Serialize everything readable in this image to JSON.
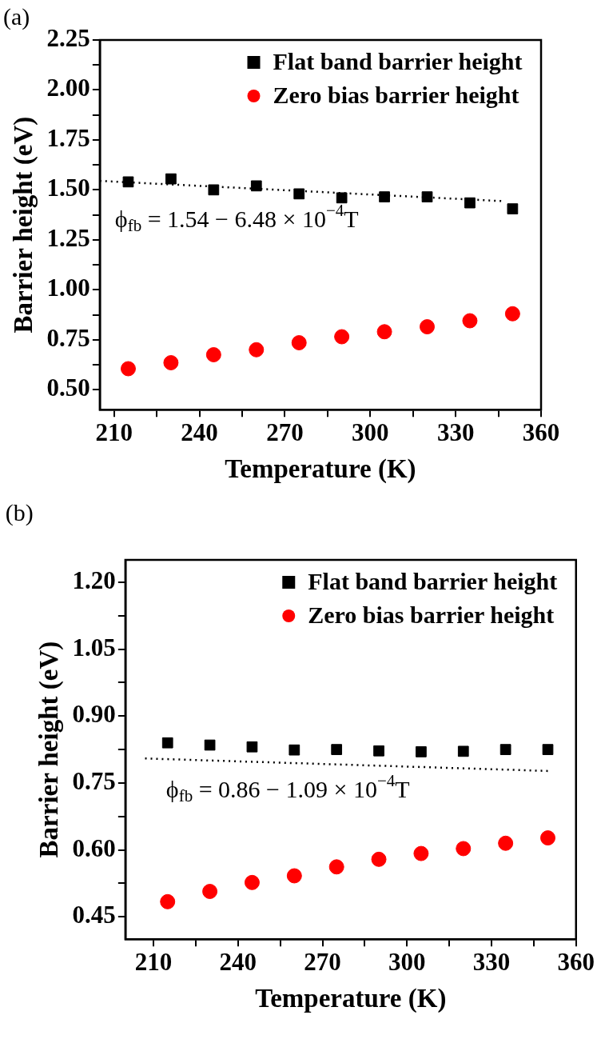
{
  "chart_data": [
    {
      "type": "scatter",
      "title": "(a)",
      "xlabel": "Temperature (K)",
      "ylabel": "Barrier height (eV)",
      "x": [
        215,
        230,
        245,
        260,
        275,
        290,
        305,
        320,
        335,
        350
      ],
      "xlim": [
        205,
        360
      ],
      "xticks": [
        210,
        {
          "value": 225,
          "label": null
        },
        240,
        {
          "value": 255,
          "label": null
        },
        270,
        {
          "value": 285,
          "label": null
        },
        300,
        {
          "value": 315,
          "label": null
        },
        330,
        {
          "value": 345,
          "label": null
        },
        360
      ],
      "ylim": [
        0.4,
        2.25
      ],
      "yticks": [
        {
          "value": 0.5,
          "label": "0.50"
        },
        {
          "value": 0.625,
          "label": null
        },
        {
          "value": 0.75,
          "label": "0.75"
        },
        {
          "value": 0.875,
          "label": null
        },
        {
          "value": 1.0,
          "label": "1.00"
        },
        {
          "value": 1.125,
          "label": null
        },
        {
          "value": 1.25,
          "label": "1.25"
        },
        {
          "value": 1.375,
          "label": null
        },
        {
          "value": 1.5,
          "label": "1.50"
        },
        {
          "value": 1.625,
          "label": null
        },
        {
          "value": 1.75,
          "label": "1.75"
        },
        {
          "value": 1.875,
          "label": null
        },
        {
          "value": 2.0,
          "label": "2.00"
        },
        {
          "value": 2.125,
          "label": null
        },
        {
          "value": 2.25,
          "label": "2.25"
        }
      ],
      "grid": false,
      "legend": "top right",
      "series": [
        {
          "name": "Flat band barrier height",
          "color": "#000000",
          "marker": "square",
          "values": [
            1.54,
            1.555,
            1.5,
            1.52,
            1.48,
            1.46,
            1.465,
            1.465,
            1.435,
            1.405
          ]
        },
        {
          "name": "Zero bias barrier height",
          "color": "#ff0000",
          "marker": "circle",
          "values": [
            0.605,
            0.635,
            0.675,
            0.7,
            0.735,
            0.765,
            0.79,
            0.815,
            0.845,
            0.88
          ]
        },
        {
          "type": "line",
          "color": "#000000",
          "marker": "none",
          "line_style": "dotted",
          "x": [
            205,
            346
          ],
          "values": [
            1.545,
            1.444
          ]
        }
      ],
      "annotations": [
        "ϕ$_{fb}$ = 1.54 − 6.48 × 10$^{−4}$T"
      ]
    },
    {
      "type": "scatter",
      "title": "(b)",
      "xlabel": "Temperature (K)",
      "ylabel": "Barrier height (eV)",
      "x": [
        215,
        230,
        245,
        260,
        275,
        290,
        305,
        320,
        335,
        350
      ],
      "xlim": [
        200,
        360
      ],
      "xticks": [
        210,
        {
          "value": 225,
          "label": null
        },
        240,
        {
          "value": 255,
          "label": null
        },
        270,
        {
          "value": 285,
          "label": null
        },
        300,
        {
          "value": 315,
          "label": null
        },
        330,
        {
          "value": 345,
          "label": null
        },
        360
      ],
      "ylim": [
        0.4,
        1.25
      ],
      "yticks": [
        {
          "value": 0.45,
          "label": "0.45"
        },
        {
          "value": 0.525,
          "label": null
        },
        {
          "value": 0.6,
          "label": "0.60"
        },
        {
          "value": 0.675,
          "label": null
        },
        {
          "value": 0.75,
          "label": "0.75"
        },
        {
          "value": 0.825,
          "label": null
        },
        {
          "value": 0.9,
          "label": "0.90"
        },
        {
          "value": 0.975,
          "label": null
        },
        {
          "value": 1.05,
          "label": "1.05"
        },
        {
          "value": 1.125,
          "label": null
        },
        {
          "value": 1.2,
          "label": "1.20"
        }
      ],
      "grid": false,
      "legend": "top right",
      "series": [
        {
          "name": "Flat band barrier height",
          "color": "#000000",
          "marker": "square",
          "values": [
            0.84,
            0.835,
            0.831,
            0.824,
            0.825,
            0.822,
            0.82,
            0.821,
            0.825,
            0.825
          ]
        },
        {
          "name": "Zero bias barrier height",
          "color": "#ff0000",
          "marker": "circle",
          "values": [
            0.484,
            0.507,
            0.527,
            0.542,
            0.562,
            0.579,
            0.592,
            0.603,
            0.615,
            0.627
          ]
        },
        {
          "type": "line",
          "color": "#000000",
          "marker": "none",
          "line_style": "dotted",
          "x": [
            207,
            350
          ],
          "values": [
            0.805,
            0.777
          ]
        }
      ],
      "annotations": [
        "ϕ$_{fb}$ = 0.86 − 1.09 × 10$^{−4}$T"
      ]
    }
  ]
}
